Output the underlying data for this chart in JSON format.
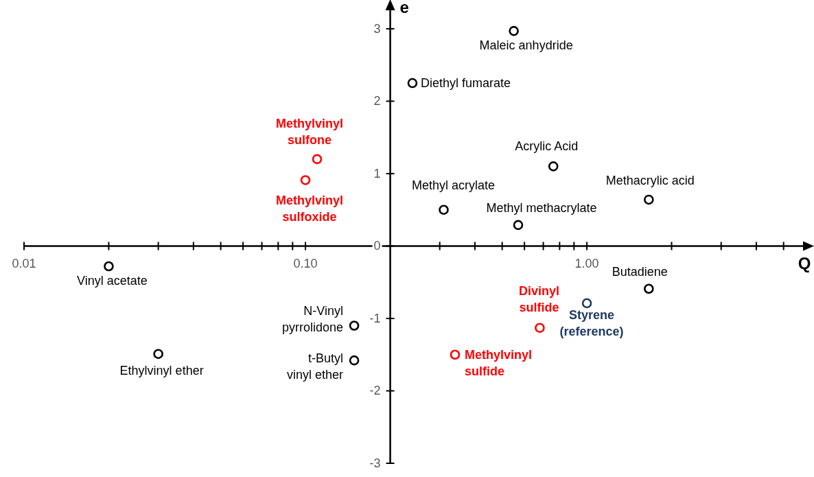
{
  "chart_data": {
    "type": "scatter",
    "xlabel": "Q",
    "ylabel": "e",
    "log": "x",
    "marker": "circle",
    "grid": false,
    "xlim": [
      0.01,
      6.2
    ],
    "ylim": [
      -3,
      3.35
    ],
    "xticks": [
      {
        "value": 0.01,
        "label": "0.01"
      },
      {
        "value": 0.02,
        "label": null
      },
      {
        "value": 0.03,
        "label": null
      },
      {
        "value": 0.04,
        "label": null
      },
      {
        "value": 0.05,
        "label": null
      },
      {
        "value": 0.06,
        "label": null
      },
      {
        "value": 0.07,
        "label": null
      },
      {
        "value": 0.08,
        "label": null
      },
      {
        "value": 0.09,
        "label": null
      },
      {
        "value": 0.1,
        "label": "0.10"
      },
      {
        "value": 0.2,
        "label": null
      },
      {
        "value": 0.3,
        "label": null
      },
      {
        "value": 0.4,
        "label": null
      },
      {
        "value": 0.5,
        "label": null
      },
      {
        "value": 0.6,
        "label": null
      },
      {
        "value": 0.7,
        "label": null
      },
      {
        "value": 0.8,
        "label": null
      },
      {
        "value": 0.9,
        "label": null
      },
      {
        "value": 1,
        "label": "1.00"
      },
      {
        "value": 2,
        "label": null
      },
      {
        "value": 3,
        "label": null
      },
      {
        "value": 4,
        "label": null
      },
      {
        "value": 5,
        "label": null
      }
    ],
    "yticks": [
      -3,
      -2,
      -1,
      0,
      1,
      2,
      3
    ],
    "series": [
      {
        "color": "#000000",
        "x": [
          0.55,
          0.24,
          0.76,
          0.31,
          0.57,
          1.66,
          1.66,
          0.149,
          0.149,
          0.02,
          0.03
        ],
        "values": [
          2.97,
          2.25,
          1.1,
          0.5,
          0.29,
          0.64,
          -0.59,
          -1.1,
          -1.58,
          -0.28,
          -1.49
        ]
      },
      {
        "color": "#ff0000",
        "x": [
          0.11,
          0.1,
          0.68,
          0.34
        ],
        "values": [
          1.2,
          0.91,
          -1.13,
          -1.5
        ]
      },
      {
        "color": "#1f3864",
        "x": [
          1
        ],
        "values": [
          -0.79
        ]
      }
    ],
    "annotations": [
      {
        "text": "Maleic anhydride",
        "x": 0.55,
        "y": 2.97
      },
      {
        "text": "Diethyl fumarate",
        "x": 0.24,
        "y": 2.25
      },
      {
        "text": "Methylvinyl\nsulfone",
        "x": 0.11,
        "y": 1.2
      },
      {
        "text": "Methylvinyl\nsulfoxide",
        "x": 0.1,
        "y": 0.91
      },
      {
        "text": "Acrylic Acid",
        "x": 0.76,
        "y": 1.1
      },
      {
        "text": "Methyl acrylate",
        "x": 0.31,
        "y": 0.5
      },
      {
        "text": "Methyl methacrylate",
        "x": 0.57,
        "y": 0.29
      },
      {
        "text": "Methacrylic acid",
        "x": 1.66,
        "y": 0.64
      },
      {
        "text": "Butadiene",
        "x": 1.66,
        "y": -0.59
      },
      {
        "text": "Styrene\n(reference)",
        "x": 1,
        "y": -0.79
      },
      {
        "text": "Divinyl\nsulfide",
        "x": 0.68,
        "y": -1.13
      },
      {
        "text": "Methylvinyl\nsulfide",
        "x": 0.34,
        "y": -1.5
      },
      {
        "text": "N-Vinyl\npyrrolidone",
        "x": 0.149,
        "y": -1.1
      },
      {
        "text": "t-Butyl\nvinyl ether",
        "x": 0.149,
        "y": -1.58
      },
      {
        "text": "Vinyl acetate",
        "x": 0.02,
        "y": -0.28
      },
      {
        "text": "Ethylvinyl ether",
        "x": 0.03,
        "y": -1.49
      }
    ]
  }
}
